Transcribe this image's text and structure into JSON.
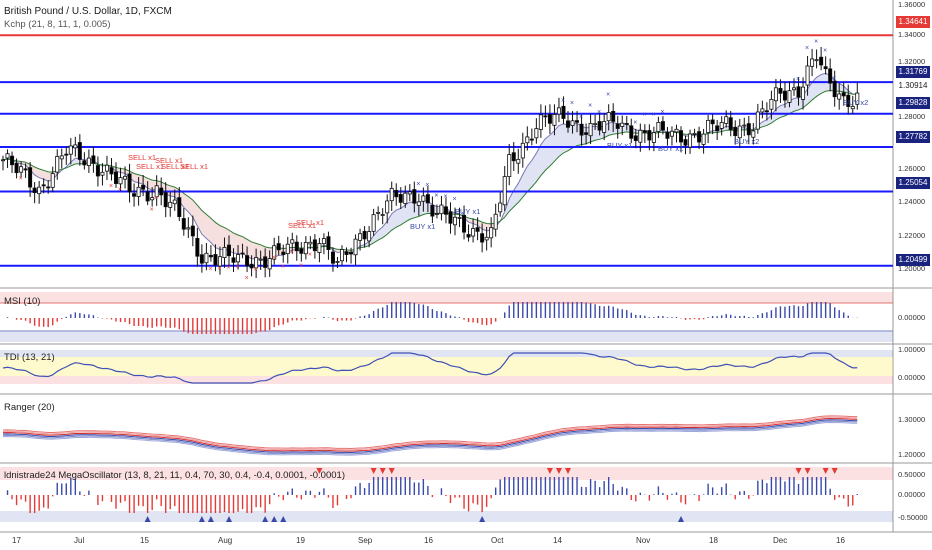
{
  "header": {
    "symbol_title": "British Pound / U.S. Dollar, 1D, FXCM",
    "indicator_line": "Kchp (21, 8, 11, 1, 0.005)"
  },
  "price_tags": [
    {
      "label": "1.34641",
      "price": 1.34641,
      "color": "#e53935"
    },
    {
      "label": "1.31769",
      "price": 1.31769,
      "color": "#1a237e"
    },
    {
      "label": "1.30914",
      "price": 1.30914,
      "color": "#ffffff"
    },
    {
      "label": "1.29828",
      "price": 1.29828,
      "color": "#1a237e"
    },
    {
      "label": "1.27782",
      "price": 1.27782,
      "color": "#1a237e"
    },
    {
      "label": "1.25054",
      "price": 1.25054,
      "color": "#1a237e"
    },
    {
      "label": "1.20499",
      "price": 1.20499,
      "color": "#1a237e"
    }
  ],
  "price_axis_ticks": [
    "1.36000",
    "1.34000",
    "1.32000",
    "1.28000",
    "1.26000",
    "1.24000",
    "1.22000",
    "1.20000"
  ],
  "x_axis_ticks": [
    "17",
    "Jul",
    "15",
    "Aug",
    "19",
    "Sep",
    "16",
    "Oct",
    "14",
    "Nov",
    "18",
    "Dec",
    "16"
  ],
  "signals": {
    "sell": [
      "SELL x1",
      "SELL x1",
      "SELL x1",
      "SELL x1",
      "SELL x1",
      "SELL x1",
      "SELL x1"
    ],
    "buy": [
      "BUY x1",
      "BUY x1",
      "BUY x1",
      "BUY x1",
      "BUY x2",
      "BUY x2"
    ]
  },
  "panes": {
    "msi": {
      "title": "MSI (10)",
      "ticks": [
        "0.00000"
      ]
    },
    "tdi": {
      "title": "TDI (13, 21)",
      "ticks": [
        "1.00000",
        "0.00000"
      ]
    },
    "ranger": {
      "title": "Ranger (20)",
      "ticks": [
        "1.30000",
        "1.20000"
      ]
    },
    "mega": {
      "title": "ldnistrade24 MegaOscillator (13, 8, 21, 11, 0.4, 70, 30, 0.4, -0.4, 0.0001, -0.0001)",
      "ticks": [
        "0.50000",
        "0.00000",
        "-0.50000"
      ]
    }
  },
  "colors": {
    "up": "#ffffff",
    "down": "#000000",
    "sell": "#e53935",
    "buy": "#3949ab",
    "level": "#1a1aff",
    "resistance": "#e53935"
  },
  "chart_data": {
    "type": "candlestick",
    "title": "British Pound / U.S. Dollar, 1D, FXCM",
    "ylim": [
      1.195,
      1.365
    ],
    "anchors": [
      {
        "d": 0,
        "c": 1.27
      },
      {
        "d": 8,
        "c": 1.252
      },
      {
        "d": 14,
        "c": 1.275
      },
      {
        "d": 22,
        "c": 1.266
      },
      {
        "d": 28,
        "c": 1.25
      },
      {
        "d": 34,
        "c": 1.252
      },
      {
        "d": 38,
        "c": 1.238
      },
      {
        "d": 44,
        "c": 1.212
      },
      {
        "d": 52,
        "c": 1.208
      },
      {
        "d": 58,
        "c": 1.21
      },
      {
        "d": 64,
        "c": 1.215
      },
      {
        "d": 70,
        "c": 1.222
      },
      {
        "d": 74,
        "c": 1.204
      },
      {
        "d": 80,
        "c": 1.228
      },
      {
        "d": 86,
        "c": 1.245
      },
      {
        "d": 92,
        "c": 1.25
      },
      {
        "d": 96,
        "c": 1.236
      },
      {
        "d": 102,
        "c": 1.23
      },
      {
        "d": 108,
        "c": 1.222
      },
      {
        "d": 112,
        "c": 1.268
      },
      {
        "d": 118,
        "c": 1.292
      },
      {
        "d": 124,
        "c": 1.296
      },
      {
        "d": 130,
        "c": 1.289
      },
      {
        "d": 136,
        "c": 1.293
      },
      {
        "d": 142,
        "c": 1.285
      },
      {
        "d": 148,
        "c": 1.286
      },
      {
        "d": 154,
        "c": 1.285
      },
      {
        "d": 160,
        "c": 1.292
      },
      {
        "d": 166,
        "c": 1.29
      },
      {
        "d": 172,
        "c": 1.312
      },
      {
        "d": 176,
        "c": 1.314
      },
      {
        "d": 180,
        "c": 1.333
      },
      {
        "d": 182,
        "c": 1.319
      },
      {
        "d": 186,
        "c": 1.308
      }
    ],
    "horizontal_levels": [
      1.34641,
      1.31769,
      1.29828,
      1.27782,
      1.25054,
      1.20499
    ]
  }
}
